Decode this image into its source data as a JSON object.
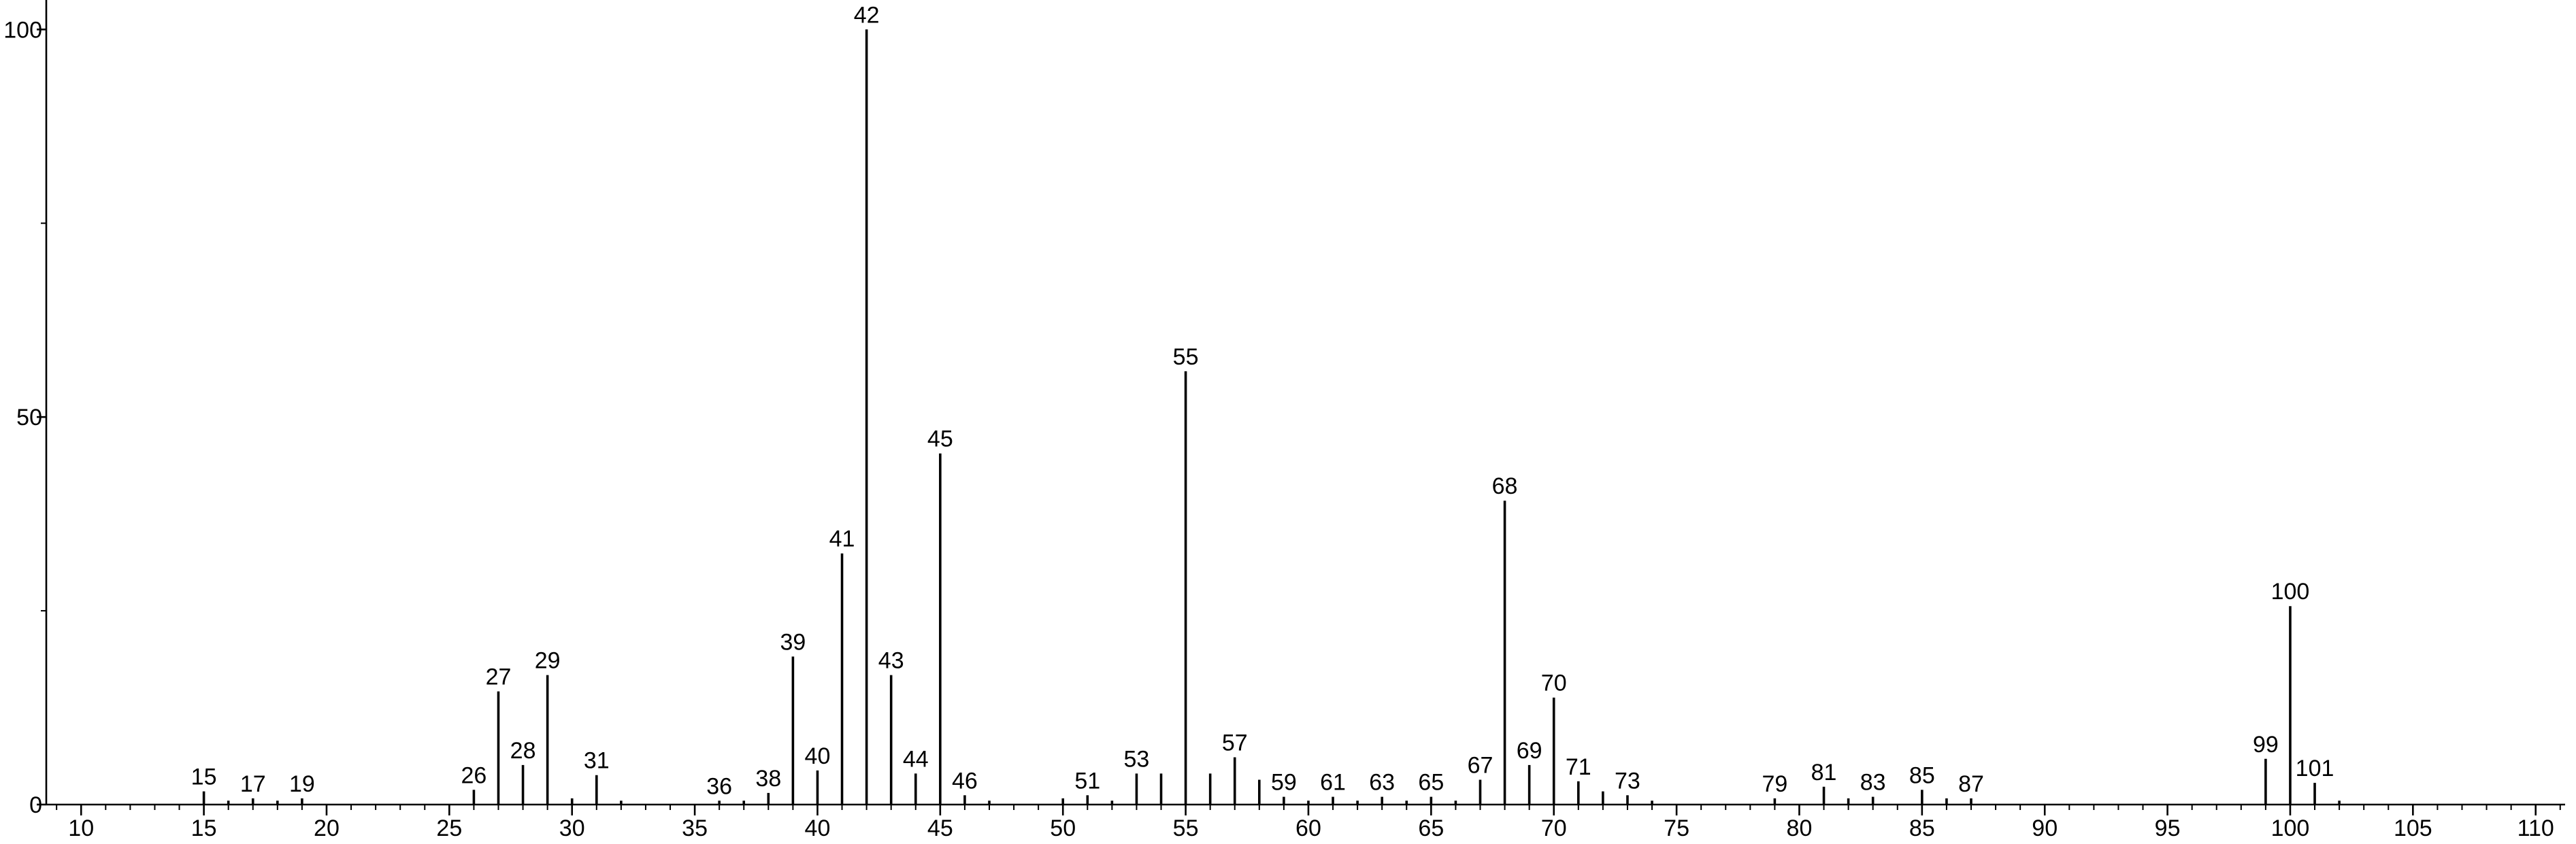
{
  "chart_data": {
    "type": "stem",
    "x": [
      15,
      16,
      17,
      18,
      19,
      26,
      27,
      28,
      29,
      30,
      31,
      32,
      36,
      37,
      38,
      39,
      40,
      41,
      42,
      43,
      44,
      45,
      46,
      47,
      50,
      51,
      52,
      53,
      54,
      55,
      56,
      57,
      58,
      59,
      60,
      61,
      62,
      63,
      64,
      65,
      66,
      67,
      68,
      69,
      70,
      71,
      72,
      73,
      74,
      79,
      81,
      82,
      83,
      85,
      86,
      87,
      99,
      100,
      101,
      102
    ],
    "values": [
      1.7,
      0.5,
      0.8,
      0.5,
      0.8,
      1.9,
      14.6,
      5.1,
      16.7,
      0.8,
      3.8,
      0.5,
      0.5,
      0.5,
      1.5,
      19.1,
      4.4,
      32.4,
      100,
      16.7,
      4.0,
      45.3,
      1.2,
      0.5,
      0.8,
      1.2,
      0.5,
      4.0,
      4.0,
      55.9,
      4.0,
      6.1,
      3.2,
      1.0,
      0.5,
      1.0,
      0.5,
      1.0,
      0.5,
      1.0,
      0.5,
      3.2,
      39.2,
      5.1,
      13.8,
      3.0,
      1.7,
      1.2,
      0.5,
      0.8,
      2.3,
      0.8,
      1.0,
      1.9,
      0.8,
      0.8,
      5.9,
      25.6,
      2.8,
      0.5
    ],
    "x_labels": [
      15,
      null,
      17,
      null,
      19,
      26,
      27,
      28,
      29,
      null,
      31,
      null,
      36,
      null,
      38,
      39,
      40,
      41,
      42,
      43,
      44,
      45,
      46,
      null,
      null,
      51,
      null,
      53,
      null,
      55,
      null,
      57,
      null,
      59,
      null,
      61,
      null,
      63,
      null,
      65,
      null,
      67,
      68,
      69,
      70,
      71,
      null,
      73,
      null,
      79,
      81,
      null,
      83,
      85,
      null,
      87,
      99,
      100,
      101,
      null
    ],
    "color": "#000000",
    "xlim": [
      8.58,
      111.2
    ],
    "xticks": [
      10,
      15,
      20,
      25,
      30,
      35,
      40,
      45,
      50,
      55,
      60,
      65,
      70,
      75,
      80,
      85,
      90,
      95,
      100,
      105,
      110
    ],
    "xminor_step": 1,
    "ylim": [
      0,
      103.8
    ],
    "yticks": [
      0,
      50,
      100
    ],
    "yminor_step": 25
  }
}
